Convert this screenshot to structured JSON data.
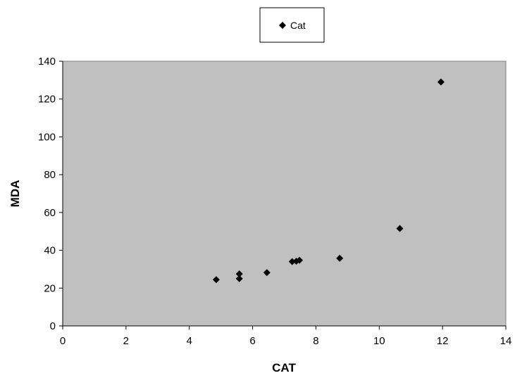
{
  "chart_data": {
    "type": "scatter",
    "title": "",
    "xlabel": "CAT",
    "ylabel": "MDA",
    "xlim": [
      0,
      14
    ],
    "ylim": [
      0,
      140
    ],
    "x_ticks": [
      "0",
      "2",
      "4",
      "6",
      "8",
      "10",
      "12",
      "14"
    ],
    "y_ticks": [
      "0",
      "20",
      "40",
      "60",
      "80",
      "100",
      "120",
      "140"
    ],
    "grid": false,
    "legend_position": "top-center",
    "plot_background": "#c0c0c0",
    "marker": "diamond",
    "marker_color": "#000000",
    "series": [
      {
        "name": "Cat",
        "points": [
          {
            "x": 4.85,
            "y": 24.5
          },
          {
            "x": 5.58,
            "y": 25.0
          },
          {
            "x": 5.58,
            "y": 27.5
          },
          {
            "x": 6.45,
            "y": 28.2
          },
          {
            "x": 7.25,
            "y": 34.0
          },
          {
            "x": 7.38,
            "y": 34.2
          },
          {
            "x": 7.48,
            "y": 34.7
          },
          {
            "x": 8.75,
            "y": 35.8
          },
          {
            "x": 10.65,
            "y": 51.5
          },
          {
            "x": 11.95,
            "y": 129.0
          }
        ]
      }
    ]
  }
}
